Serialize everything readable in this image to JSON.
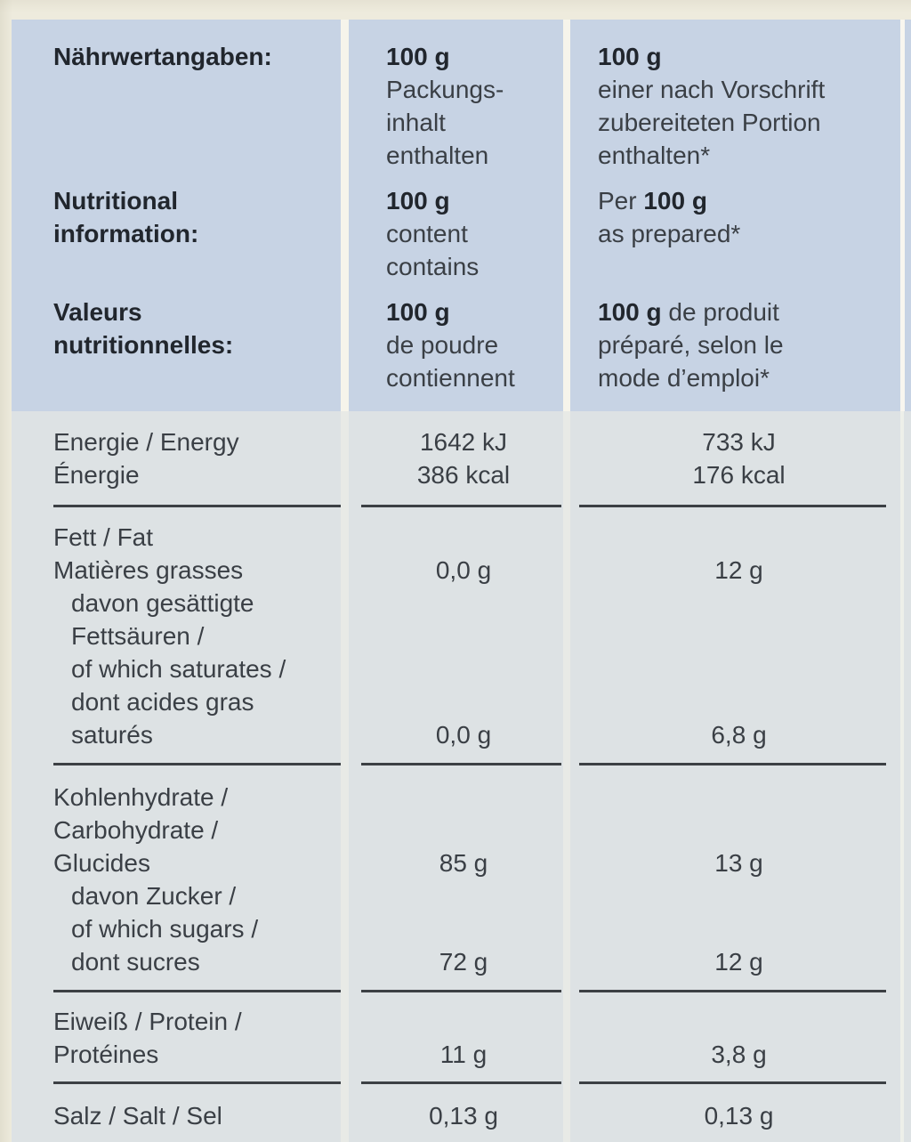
{
  "colors": {
    "page_background": "#eeebdd",
    "header_background": "#c7d3e4",
    "body_background": "#dde2e4",
    "gutter": "#f6f4eb",
    "rule": "#3c4044",
    "text": "#3a3f45",
    "heading_text": "#21262d"
  },
  "table": {
    "header": {
      "groups": [
        {
          "label": [
            "Nährwertangaben:"
          ],
          "per_100g_powder": [
            "**100 g**",
            "Packungs-",
            "inhalt",
            "enthalten"
          ],
          "per_100g_prepared": [
            "**100 g**",
            "einer nach Vorschrift",
            "zubereiteten Portion",
            "enthalten*"
          ]
        },
        {
          "label": [
            "Nutritional",
            "information:"
          ],
          "per_100g_powder": [
            "**100 g**",
            "content",
            "contains"
          ],
          "per_100g_prepared": [
            "Per **100 g**",
            "as prepared*"
          ]
        },
        {
          "label": [
            "Valeurs",
            "nutritionnelles:"
          ],
          "per_100g_powder": [
            "**100 g**",
            "de poudre",
            "contiennent"
          ],
          "per_100g_prepared": [
            "**100 g** de produit",
            "préparé, selon le",
            "mode d’emploi*"
          ]
        }
      ]
    },
    "rows": [
      {
        "name": "energy",
        "label_lines": [
          {
            "text": "Energie / Energy"
          },
          {
            "text": "Énergie"
          }
        ],
        "per_100g_powder": [
          "1642 kJ",
          "386 kcal"
        ],
        "per_100g_prepared": [
          "733 kJ",
          "176 kcal"
        ],
        "rule_below": true
      },
      {
        "name": "fat",
        "label_lines": [
          {
            "text": "Fett / Fat"
          },
          {
            "text": "Matières grasses"
          },
          {
            "text": "davon gesättigte",
            "indent": true
          },
          {
            "text": "Fettsäuren /",
            "indent": true
          },
          {
            "text": "of which saturates /",
            "indent": true
          },
          {
            "text": "dont acides gras",
            "indent": true
          },
          {
            "text": "saturés",
            "indent": true
          }
        ],
        "per_100g_powder": [
          "",
          "0,0 g",
          "",
          "",
          "",
          "",
          "0,0 g"
        ],
        "per_100g_prepared": [
          "",
          "12 g",
          "",
          "",
          "",
          "",
          "6,8 g"
        ],
        "rule_below": true
      },
      {
        "name": "carbohydrate",
        "label_lines": [
          {
            "text": "Kohlenhydrate /"
          },
          {
            "text": "Carbohydrate /"
          },
          {
            "text": "Glucides"
          },
          {
            "text": "davon Zucker /",
            "indent": true
          },
          {
            "text": "of which sugars /",
            "indent": true
          },
          {
            "text": "dont sucres",
            "indent": true
          }
        ],
        "per_100g_powder": [
          "",
          "",
          "85 g",
          "",
          "",
          "72 g"
        ],
        "per_100g_prepared": [
          "",
          "",
          "13 g",
          "",
          "",
          "12 g"
        ],
        "rule_below": true
      },
      {
        "name": "protein",
        "label_lines": [
          {
            "text": "Eiweiß / Protein /"
          },
          {
            "text": "Protéines"
          }
        ],
        "per_100g_powder": [
          "",
          "11 g"
        ],
        "per_100g_prepared": [
          "",
          "3,8 g"
        ],
        "rule_below": true
      },
      {
        "name": "salt",
        "label_lines": [
          {
            "text": "Salz / Salt / Sel"
          }
        ],
        "per_100g_powder": [
          "0,13 g"
        ],
        "per_100g_prepared": [
          "0,13 g"
        ],
        "rule_below": false
      }
    ]
  }
}
